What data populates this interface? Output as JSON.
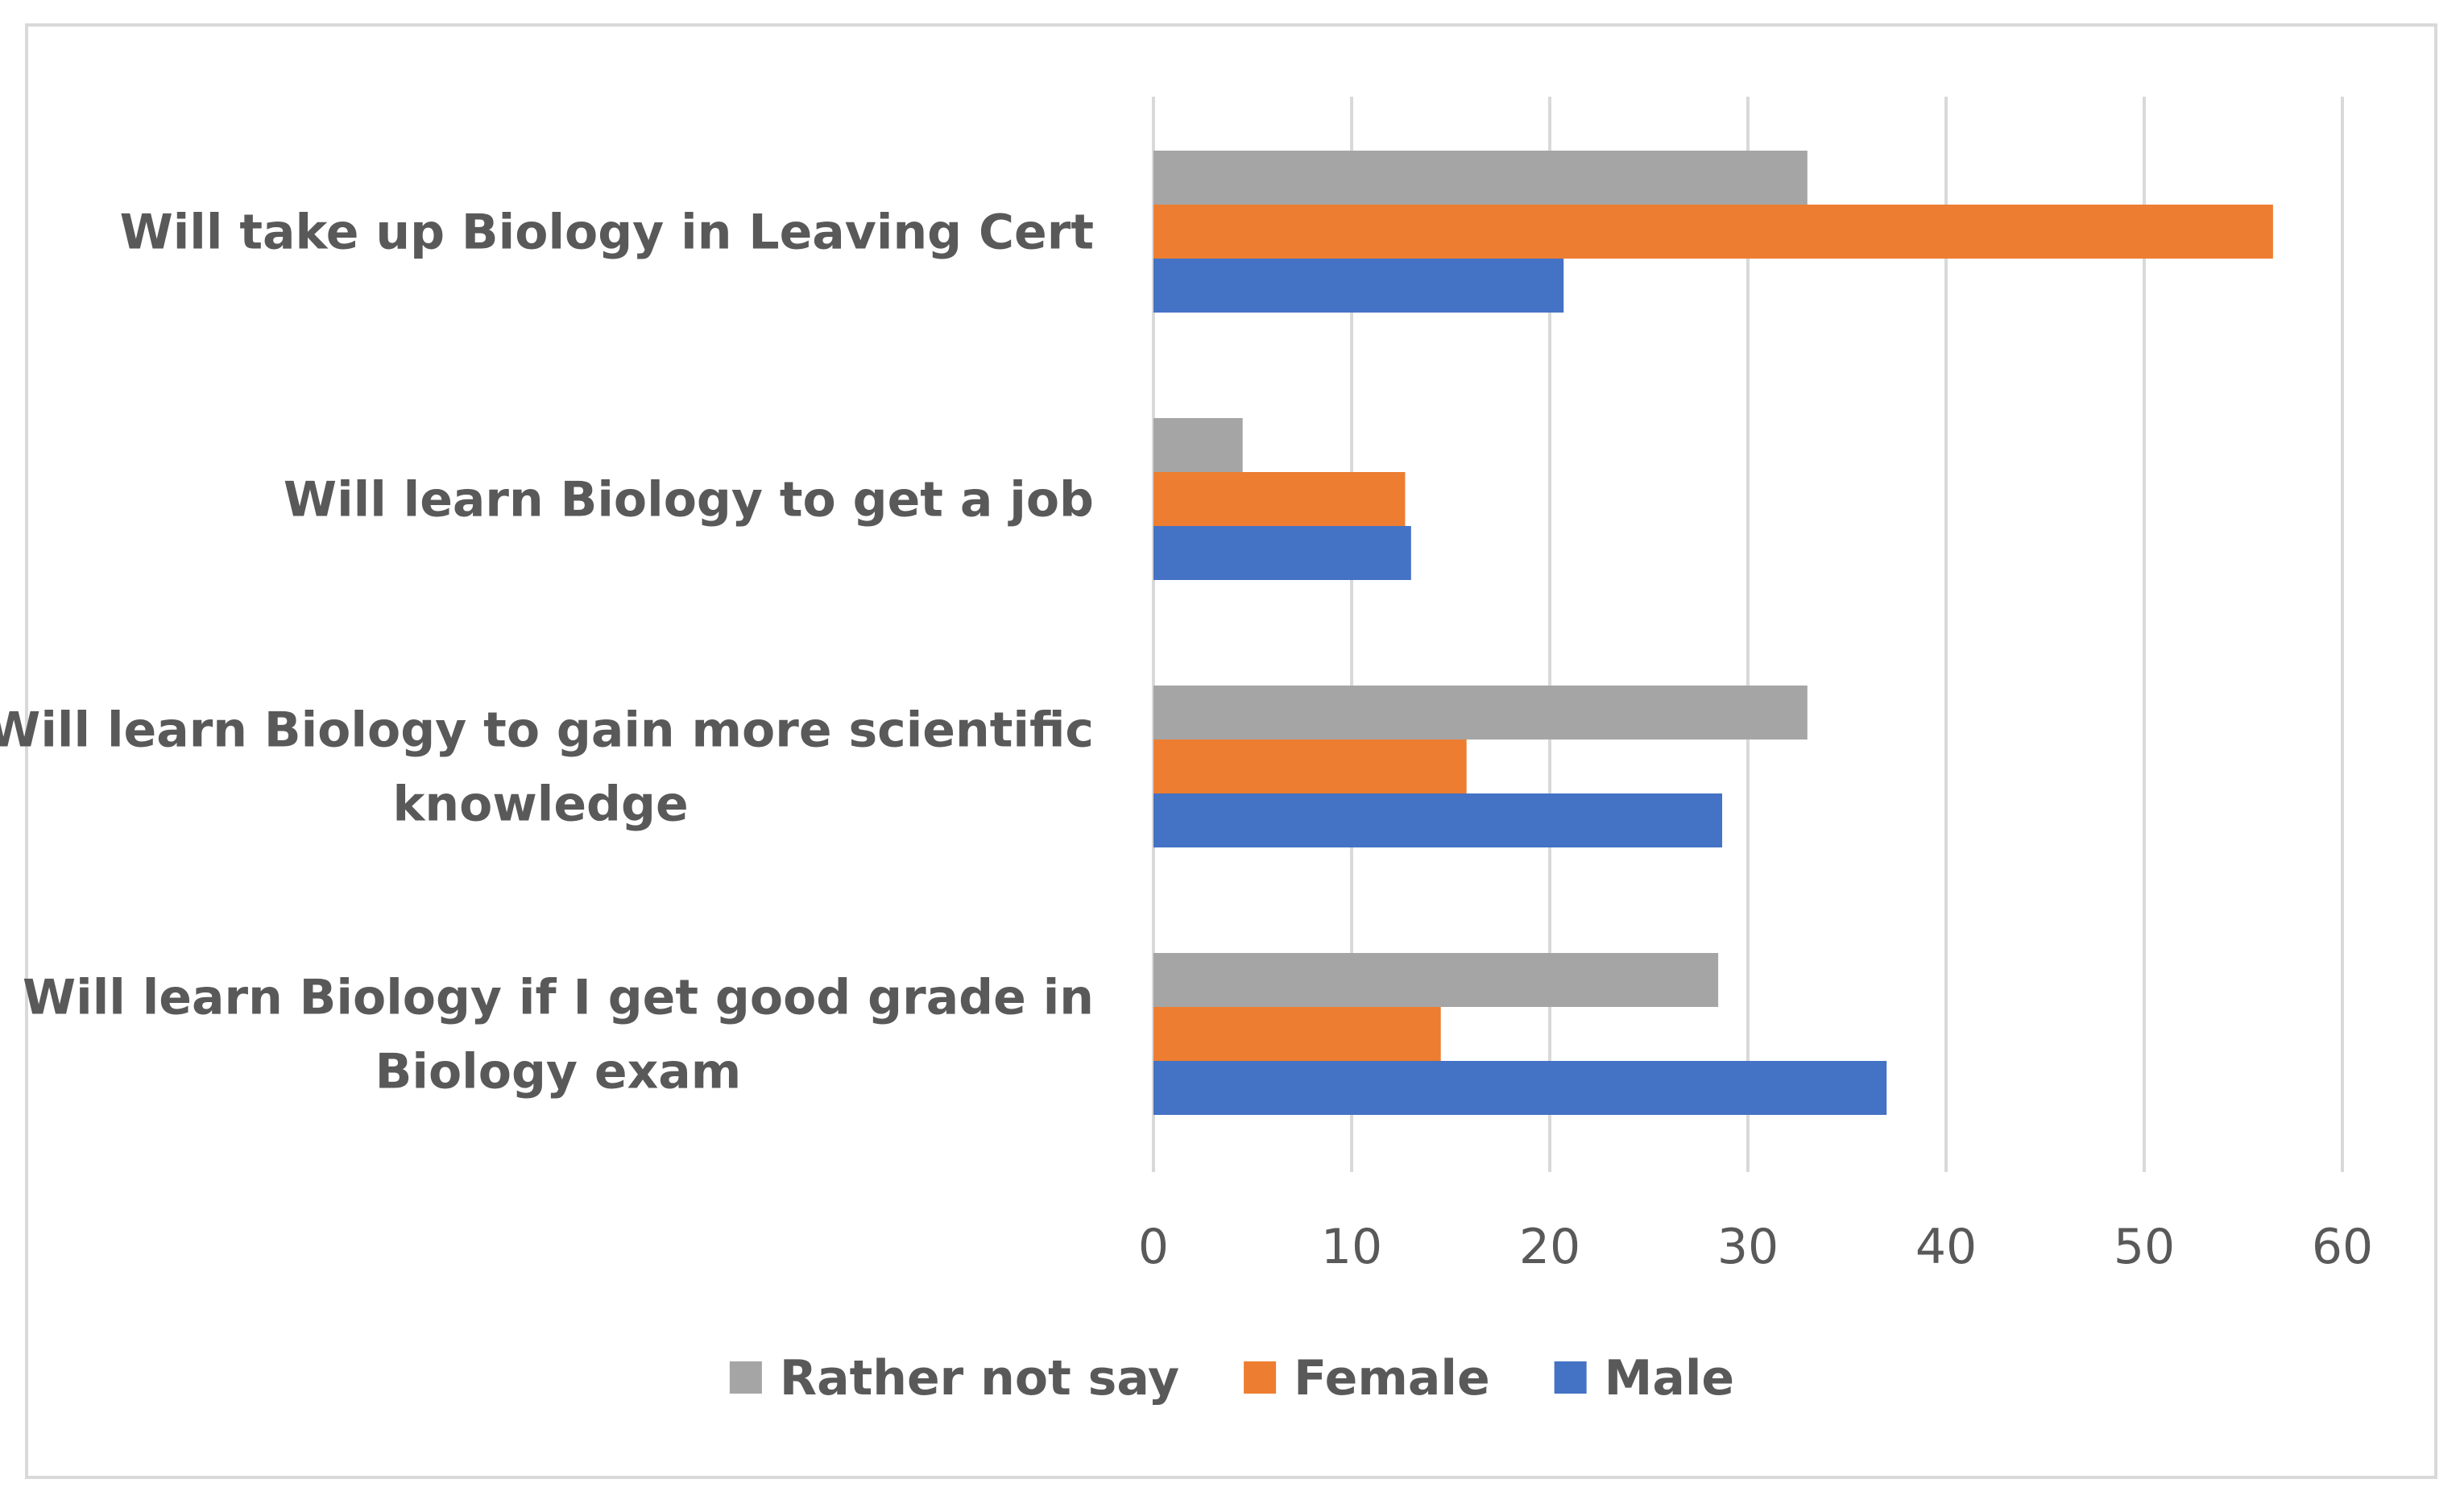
{
  "chart_data": {
    "type": "bar",
    "orientation": "horizontal",
    "title": "",
    "xlabel": "",
    "ylabel": "",
    "xlim": [
      0,
      60
    ],
    "grid": true,
    "ticks": [
      0,
      10,
      20,
      30,
      40,
      50,
      60
    ],
    "categories": [
      [
        "Will take up Biology in Leaving Cert"
      ],
      [
        "Will learn Biology to get a job"
      ],
      [
        "Will learn Biology to gain more scientific",
        "knowledge"
      ],
      [
        "Will learn Biology if I get good grade in",
        "Biology exam"
      ]
    ],
    "series": [
      {
        "name": "Rather not say",
        "color": "#a5a5a5",
        "values": [
          33,
          4.5,
          33,
          28.5
        ]
      },
      {
        "name": "Female",
        "color": "#ed7d31",
        "values": [
          56.5,
          12.7,
          15.8,
          14.5
        ]
      },
      {
        "name": "Male",
        "color": "#4472c4",
        "values": [
          20.7,
          13,
          28.7,
          37
        ]
      }
    ],
    "legend_position": "bottom"
  }
}
